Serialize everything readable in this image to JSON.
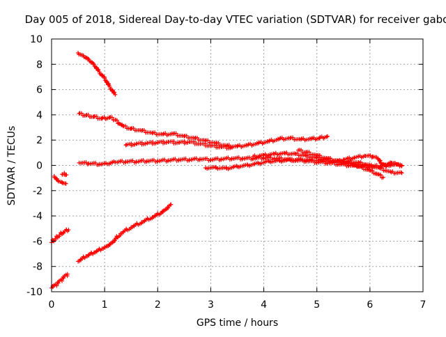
{
  "chart_data": {
    "type": "scatter",
    "title": "Day 005 of 2018, Sidereal Day-to-day VTEC variation (SDTVAR) for receiver gabo",
    "xlabel": "GPS time / hours",
    "ylabel": "SDTVAR / TECUs",
    "xlim": [
      0,
      7
    ],
    "ylim": [
      -10,
      10
    ],
    "xticks": [
      "0",
      "1",
      "2",
      "3",
      "4",
      "5",
      "6",
      "7"
    ],
    "yticks": [
      "-10",
      "-8",
      "-6",
      "-4",
      "-2",
      "0",
      "2",
      "4",
      "6",
      "8",
      "10"
    ],
    "grid": true,
    "marker": "plus",
    "series_color": "#ff0000",
    "series": [
      {
        "points": [
          [
            0.5,
            8.9
          ],
          [
            0.6,
            8.7
          ],
          [
            0.7,
            8.4
          ],
          [
            0.8,
            8.0
          ],
          [
            0.9,
            7.4
          ],
          [
            1.0,
            6.9
          ],
          [
            1.1,
            6.2
          ],
          [
            1.2,
            5.6
          ]
        ]
      },
      {
        "points": [
          [
            0.52,
            4.1
          ],
          [
            0.65,
            3.95
          ],
          [
            0.8,
            3.85
          ],
          [
            0.95,
            3.7
          ],
          [
            1.1,
            3.8
          ],
          [
            1.2,
            3.6
          ],
          [
            1.35,
            3.1
          ],
          [
            1.5,
            2.9
          ],
          [
            1.7,
            2.75
          ],
          [
            1.9,
            2.55
          ],
          [
            2.1,
            2.45
          ],
          [
            2.3,
            2.5
          ],
          [
            2.5,
            2.3
          ],
          [
            2.7,
            2.15
          ],
          [
            2.9,
            1.95
          ],
          [
            3.1,
            1.75
          ],
          [
            3.3,
            1.55
          ],
          [
            3.5,
            1.5
          ],
          [
            3.7,
            1.6
          ],
          [
            3.9,
            1.75
          ],
          [
            4.1,
            1.9
          ],
          [
            4.3,
            2.1
          ],
          [
            4.5,
            2.15
          ],
          [
            4.7,
            2.05
          ],
          [
            4.9,
            2.1
          ],
          [
            5.05,
            2.15
          ],
          [
            5.2,
            2.3
          ]
        ]
      },
      {
        "points": [
          [
            1.4,
            1.6
          ],
          [
            1.6,
            1.7
          ],
          [
            1.8,
            1.75
          ],
          [
            2.0,
            1.8
          ],
          [
            2.2,
            1.85
          ],
          [
            2.4,
            1.8
          ],
          [
            2.6,
            1.85
          ],
          [
            2.8,
            1.7
          ],
          [
            3.0,
            1.55
          ],
          [
            3.2,
            1.45
          ],
          [
            3.4,
            1.4
          ]
        ]
      },
      {
        "points": [
          [
            0.52,
            0.2
          ],
          [
            0.7,
            0.15
          ],
          [
            0.9,
            0.1
          ],
          [
            1.05,
            0.1
          ],
          [
            1.2,
            0.25
          ],
          [
            1.4,
            0.3
          ],
          [
            1.6,
            0.3
          ],
          [
            1.8,
            0.35
          ],
          [
            2.0,
            0.35
          ],
          [
            2.2,
            0.4
          ],
          [
            2.4,
            0.45
          ],
          [
            2.6,
            0.45
          ],
          [
            2.8,
            0.5
          ],
          [
            3.0,
            0.45
          ],
          [
            3.2,
            0.5
          ],
          [
            3.4,
            0.55
          ],
          [
            3.6,
            0.55
          ],
          [
            3.8,
            0.55
          ],
          [
            4.0,
            0.6
          ],
          [
            4.2,
            0.55
          ],
          [
            4.4,
            0.5
          ],
          [
            4.6,
            0.4
          ],
          [
            4.8,
            0.35
          ],
          [
            5.0,
            0.25
          ],
          [
            5.2,
            0.2
          ],
          [
            5.4,
            0.1
          ],
          [
            5.6,
            0.0
          ],
          [
            5.8,
            -0.05
          ],
          [
            6.0,
            -0.1
          ],
          [
            6.2,
            -0.05
          ],
          [
            6.4,
            0.05
          ],
          [
            6.6,
            0.0
          ]
        ]
      },
      {
        "points": [
          [
            2.9,
            -0.2
          ],
          [
            3.1,
            -0.2
          ],
          [
            3.3,
            -0.25
          ],
          [
            3.5,
            -0.1
          ],
          [
            3.7,
            0.0
          ],
          [
            3.9,
            0.15
          ],
          [
            4.1,
            0.3
          ],
          [
            4.3,
            0.35
          ],
          [
            4.5,
            0.4
          ],
          [
            4.7,
            0.45
          ],
          [
            4.9,
            0.4
          ],
          [
            5.1,
            0.35
          ],
          [
            5.3,
            0.3
          ],
          [
            5.5,
            0.2
          ],
          [
            5.7,
            0.1
          ],
          [
            5.9,
            0.0
          ],
          [
            6.0,
            -0.1
          ]
        ]
      },
      {
        "points": [
          [
            3.8,
            0.7
          ],
          [
            4.0,
            0.8
          ],
          [
            4.2,
            0.9
          ],
          [
            4.4,
            0.95
          ],
          [
            4.6,
            0.9
          ],
          [
            4.8,
            0.75
          ],
          [
            5.0,
            0.6
          ],
          [
            5.2,
            0.45
          ],
          [
            5.4,
            0.35
          ],
          [
            5.6,
            0.3
          ],
          [
            5.8,
            0.2
          ],
          [
            6.0,
            0.0
          ],
          [
            6.2,
            -0.25
          ],
          [
            6.4,
            -0.55
          ],
          [
            6.6,
            -0.6
          ]
        ]
      },
      {
        "points": [
          [
            4.65,
            1.2
          ],
          [
            4.8,
            1.05
          ],
          [
            5.0,
            0.8
          ],
          [
            5.2,
            0.55
          ],
          [
            5.4,
            0.35
          ],
          [
            5.6,
            0.2
          ],
          [
            5.8,
            -0.1
          ],
          [
            6.0,
            -0.4
          ],
          [
            6.15,
            -0.7
          ],
          [
            6.25,
            -0.95
          ]
        ]
      },
      {
        "points": [
          [
            5.5,
            0.45
          ],
          [
            5.7,
            0.6
          ],
          [
            5.9,
            0.75
          ],
          [
            6.05,
            0.7
          ],
          [
            6.15,
            0.55
          ],
          [
            6.2,
            0.2
          ],
          [
            6.3,
            -0.1
          ],
          [
            6.4,
            0.2
          ],
          [
            6.5,
            0.1
          ],
          [
            6.6,
            -0.05
          ]
        ]
      },
      {
        "points": [
          [
            0.05,
            -0.85
          ],
          [
            0.12,
            -1.2
          ],
          [
            0.2,
            -1.35
          ],
          [
            0.27,
            -1.45
          ]
        ]
      },
      {
        "points": [
          [
            0.2,
            -0.7
          ],
          [
            0.24,
            -0.6
          ],
          [
            0.28,
            -0.75
          ]
        ]
      },
      {
        "points": [
          [
            0.0,
            -6.1
          ],
          [
            0.07,
            -5.8
          ],
          [
            0.15,
            -5.5
          ],
          [
            0.25,
            -5.2
          ],
          [
            0.32,
            -5.1
          ]
        ]
      },
      {
        "points": [
          [
            0.0,
            -9.7
          ],
          [
            0.1,
            -9.4
          ],
          [
            0.2,
            -9.0
          ],
          [
            0.3,
            -8.6
          ]
        ]
      },
      {
        "points": [
          [
            0.5,
            -7.6
          ],
          [
            0.65,
            -7.2
          ],
          [
            0.8,
            -6.9
          ],
          [
            0.95,
            -6.6
          ],
          [
            1.05,
            -6.4
          ],
          [
            1.15,
            -6.1
          ],
          [
            1.3,
            -5.4
          ],
          [
            1.5,
            -4.9
          ],
          [
            1.7,
            -4.5
          ],
          [
            1.9,
            -4.1
          ],
          [
            2.05,
            -3.8
          ],
          [
            2.15,
            -3.5
          ],
          [
            2.25,
            -3.1
          ]
        ]
      }
    ]
  }
}
